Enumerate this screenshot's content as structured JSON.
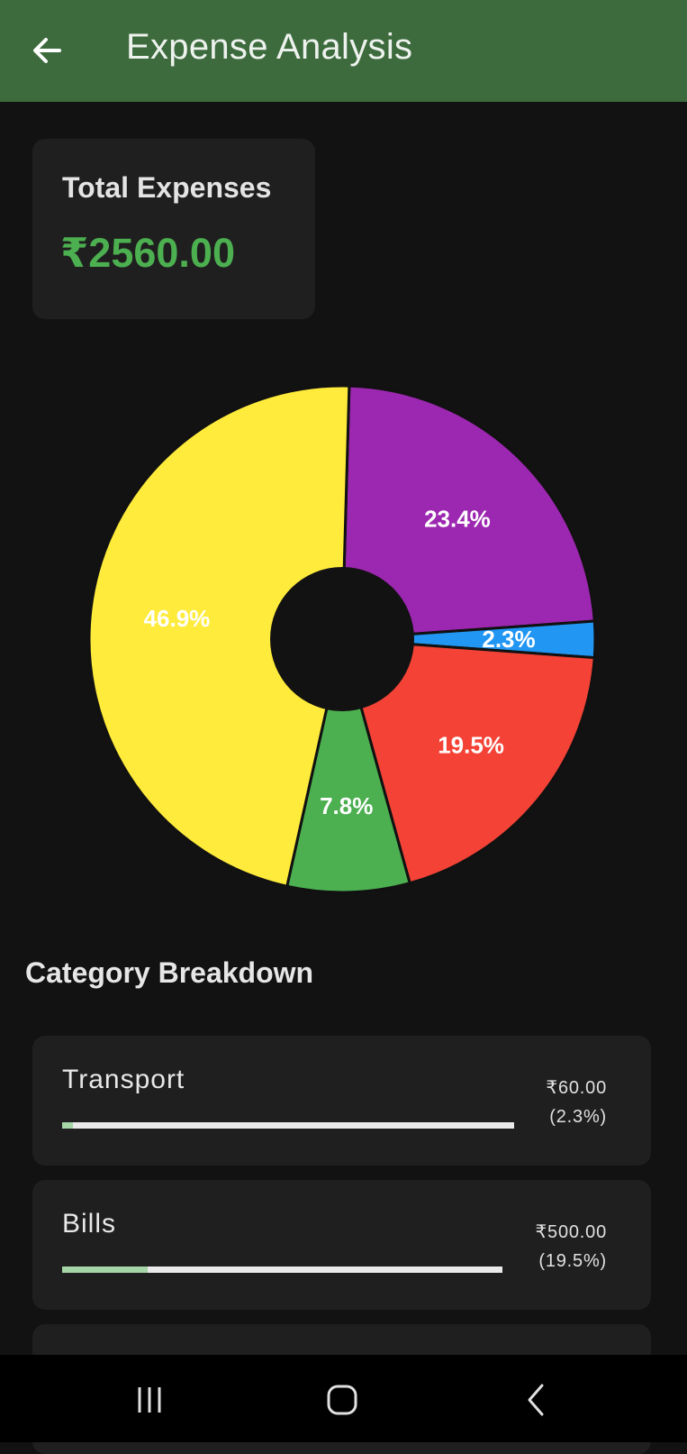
{
  "appbar": {
    "title": "Expense Analysis",
    "back_icon": "arrow-left-icon",
    "color": "#3d6b3d"
  },
  "summary": {
    "label": "Total Expenses",
    "value": "₹2560.00",
    "value_color": "#4caf50"
  },
  "chart_data": {
    "type": "pie",
    "donut": true,
    "title": "",
    "slices": [
      {
        "label": "23.4%",
        "value": 23.4,
        "color": "#9c27b0"
      },
      {
        "label": "2.3%",
        "value": 2.3,
        "color": "#2196f3"
      },
      {
        "label": "19.5%",
        "value": 19.5,
        "color": "#f44336"
      },
      {
        "label": "7.8%",
        "value": 7.8,
        "color": "#4caf50"
      },
      {
        "label": "46.9%",
        "value": 46.9,
        "color": "#ffeb3b"
      }
    ]
  },
  "breakdown": {
    "title": "Category Breakdown",
    "items": [
      {
        "name": "Transport",
        "amount": "₹60.00",
        "percent": "(2.3%)",
        "fraction": 0.023
      },
      {
        "name": "Bills",
        "amount": "₹500.00",
        "percent": "(19.5%)",
        "fraction": 0.195
      }
    ]
  },
  "navbar": {
    "recent_icon": "recent-apps-icon",
    "home_icon": "home-icon",
    "back_icon": "back-chevron-icon"
  }
}
